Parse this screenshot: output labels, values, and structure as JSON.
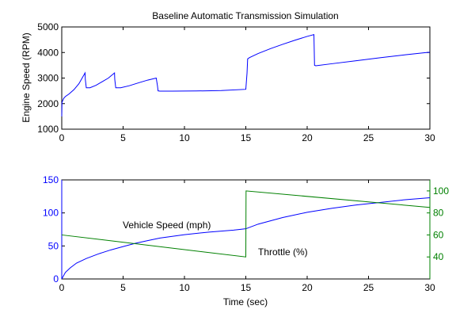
{
  "chart_data": [
    {
      "type": "line",
      "title": "Baseline Automatic Transmission Simulation",
      "xlabel": "",
      "ylabel": "Engine Speed (RPM)",
      "xlim": [
        0,
        30
      ],
      "ylim": [
        1000,
        5000
      ],
      "xticks": [
        "0",
        "5",
        "10",
        "15",
        "20",
        "25",
        "30"
      ],
      "yticks": [
        "1000",
        "2000",
        "3000",
        "4000",
        "5000"
      ],
      "grid": false,
      "series": [
        {
          "color": "#0000ff",
          "x": [
            0,
            0.02,
            0.15,
            0.3,
            0.6,
            1.0,
            1.4,
            1.9,
            1.92,
            2.0,
            2.3,
            2.8,
            3.3,
            3.8,
            4.3,
            4.32,
            4.4,
            4.8,
            5.5,
            6.3,
            7.0,
            7.7,
            7.8,
            7.85,
            8.0,
            9.0,
            11.0,
            13.0,
            15.0,
            15.1,
            15.15,
            15.3,
            16.0,
            17.0,
            18.0,
            19.0,
            20.0,
            20.55,
            20.6,
            20.7,
            22.0,
            24.0,
            26.0,
            28.0,
            29.5,
            30.0
          ],
          "y": [
            1500,
            2050,
            2200,
            2280,
            2380,
            2550,
            2780,
            3200,
            2950,
            2620,
            2620,
            2720,
            2860,
            3000,
            3200,
            2950,
            2620,
            2620,
            2700,
            2820,
            2920,
            3000,
            2700,
            2500,
            2490,
            2490,
            2495,
            2510,
            2560,
            3200,
            3750,
            3800,
            3960,
            4150,
            4320,
            4480,
            4630,
            4700,
            3500,
            3480,
            3560,
            3680,
            3800,
            3910,
            3990,
            4010
          ]
        }
      ]
    },
    {
      "type": "line",
      "title": "",
      "xlabel": "Time (sec)",
      "ylabel": "",
      "xlim": [
        0,
        30
      ],
      "ylim": [
        0,
        150
      ],
      "y2lim": [
        20,
        110
      ],
      "xticks": [
        "0",
        "5",
        "10",
        "15",
        "20",
        "25",
        "30"
      ],
      "yticks": [
        "0",
        "50",
        "100",
        "150"
      ],
      "y2ticks": [
        "40",
        "60",
        "80",
        "100"
      ],
      "grid": false,
      "colors": {
        "left_axis": "#0000ff",
        "right_axis": "#008000"
      },
      "annotations": [
        "Vehicle Speed (mph)",
        "Throttle (%)"
      ],
      "series": [
        {
          "axis": "left",
          "color": "#0000ff",
          "x": [
            0,
            0.3,
            0.7,
            1.2,
            2.0,
            3.0,
            4.0,
            5.0,
            6.0,
            7.0,
            8.0,
            10.0,
            12.0,
            14.0,
            15.0,
            16.0,
            18.0,
            20.0,
            22.0,
            24.0,
            26.0,
            28.0,
            30.0
          ],
          "y": [
            0,
            10,
            17,
            24,
            31,
            38,
            44,
            49,
            54,
            58,
            62,
            67,
            71,
            74,
            76,
            83,
            93,
            101,
            107,
            112,
            116,
            120,
            123
          ]
        },
        {
          "axis": "right",
          "color": "#008000",
          "x": [
            0,
            15.0,
            15.02,
            30.0
          ],
          "y": [
            60,
            40,
            100,
            85
          ]
        }
      ]
    }
  ]
}
